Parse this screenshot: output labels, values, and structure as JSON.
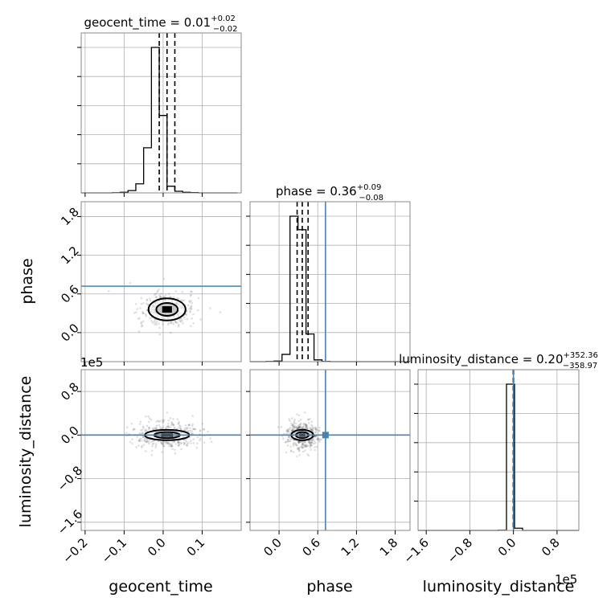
{
  "chart_data": {
    "type": "corner",
    "parameters": [
      "geocent_time",
      "phase",
      "luminosity_distance"
    ],
    "injection": {
      "phase": 0.72,
      "luminosity_distance": 0
    },
    "titles": [
      {
        "param": "geocent_time",
        "prefix": "geocent_time = ",
        "median": "0.01",
        "plus": "+0.02",
        "minus": "−0.02"
      },
      {
        "param": "phase",
        "prefix": "phase = ",
        "median": "0.36",
        "plus": "+0.09",
        "minus": "−0.08"
      },
      {
        "param": "luminosity_distance",
        "prefix": "luminosity_distance = ",
        "median": "0.20",
        "plus": "+352.36",
        "minus": "−358.97"
      }
    ],
    "axis_labels": {
      "x": [
        "geocent_time",
        "phase",
        "luminosity_distance"
      ],
      "y": [
        "phase",
        "luminosity_distance"
      ]
    },
    "ranges": {
      "geocent_time": [
        -0.21,
        0.2
      ],
      "phase": [
        -0.45,
        2.03
      ],
      "luminosity_distance": [
        -1.75,
        1.2
      ]
    },
    "offset_text": "1e5",
    "ticks": {
      "geocent_time": {
        "values": [
          -0.2,
          -0.1,
          0.0,
          0.1
        ],
        "labels": [
          "−0.2",
          "−0.1",
          "0.0",
          "0.1"
        ]
      },
      "phase": {
        "values": [
          0.0,
          0.6,
          1.2,
          1.8
        ],
        "labels": [
          "0.0",
          "0.6",
          "1.2",
          "1.8"
        ]
      },
      "luminosity_distance": {
        "values": [
          -1.6,
          -0.8,
          0.0,
          0.8
        ],
        "labels": [
          "−1.6",
          "−0.8",
          "0.0",
          "0.8"
        ]
      }
    },
    "histograms": {
      "geocent_time": {
        "bins": [
          -0.21,
          -0.19,
          -0.17,
          -0.15,
          -0.13,
          -0.11,
          -0.09,
          -0.07,
          -0.05,
          -0.03,
          -0.01,
          0.01,
          0.03,
          0.05,
          0.07,
          0.09,
          0.11,
          0.13,
          0.15,
          0.17,
          0.19
        ],
        "counts": [
          0,
          0,
          0,
          0,
          1,
          4,
          16,
          62,
          310,
          1000,
          532,
          46,
          11,
          4,
          2,
          0,
          0,
          0,
          0,
          0
        ],
        "quantiles": [
          -0.01,
          0.01,
          0.03
        ]
      },
      "phase": {
        "bins": [
          -0.45,
          -0.326,
          -0.202,
          -0.078,
          0.046,
          0.17,
          0.294,
          0.418,
          0.542,
          0.666,
          0.79,
          0.914,
          1.038,
          1.162,
          1.286,
          1.41,
          1.534,
          1.658,
          1.782,
          1.906,
          2.03
        ],
        "counts": [
          0,
          0,
          1,
          4,
          50,
          1000,
          907,
          190,
          12,
          1,
          0,
          0,
          0,
          0,
          0,
          0,
          0,
          0,
          0,
          0
        ],
        "quantiles": [
          0.28,
          0.36,
          0.45
        ]
      },
      "luminosity_distance": {
        "bins": [
          -1.75,
          -1.6025,
          -1.455,
          -1.3075,
          -1.16,
          -1.0125,
          -0.865,
          -0.7175,
          -0.57,
          -0.4225,
          -0.275,
          -0.1275,
          0.02,
          0.1675,
          0.315,
          0.4625,
          0.61,
          0.7575,
          0.905,
          1.0525,
          1.2
        ],
        "counts": [
          0,
          0,
          0,
          0,
          0,
          0,
          0,
          0,
          0,
          0,
          1,
          1000,
          15,
          0,
          0,
          0,
          0,
          0,
          0,
          0
        ],
        "quantiles": [
          -0.0036,
          2e-06,
          0.0035
        ]
      }
    },
    "scatter_center": {
      "geocent_time_phase": {
        "x": 0.01,
        "y": 0.36,
        "sx": 0.025,
        "sy": 0.09
      },
      "geocent_time_luminosity_distance": {
        "x": 0.01,
        "y": 0.0,
        "sx": 0.03,
        "sy": 0.05
      },
      "phase_luminosity_distance": {
        "x": 0.36,
        "y": 0.0,
        "sx": 0.09,
        "sy": 0.05
      }
    },
    "grid": true,
    "colors": {
      "injection": "#4682b4",
      "hist": "#000000",
      "grid": "#b0b0b0",
      "points": "#000000"
    }
  }
}
